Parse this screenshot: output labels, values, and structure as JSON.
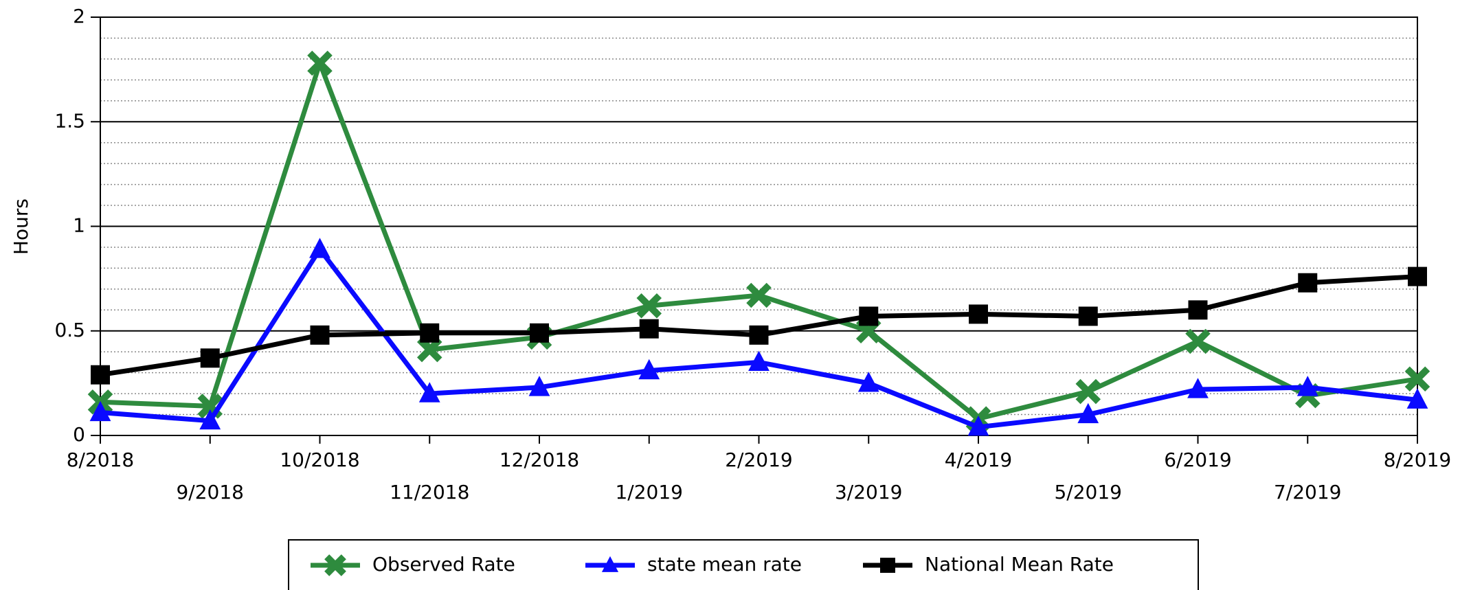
{
  "chart_data": {
    "type": "line",
    "y_label": "Hours",
    "categories": [
      "8/2018",
      "9/2018",
      "10/2018",
      "11/2018",
      "12/2018",
      "1/2019",
      "2/2019",
      "3/2019",
      "4/2019",
      "5/2019",
      "6/2019",
      "7/2019",
      "8/2019"
    ],
    "series": [
      {
        "name": "Observed Rate",
        "color": "#2e8b3e",
        "marker": "x",
        "values": [
          0.16,
          0.14,
          1.78,
          0.41,
          0.47,
          0.62,
          0.67,
          0.5,
          0.08,
          0.21,
          0.45,
          0.19,
          0.27
        ]
      },
      {
        "name": "state mean rate",
        "color": "#0a0aff",
        "marker": "triangle",
        "values": [
          0.11,
          0.07,
          0.89,
          0.2,
          0.23,
          0.31,
          0.35,
          0.25,
          0.04,
          0.1,
          0.22,
          0.23,
          0.17
        ]
      },
      {
        "name": "National Mean Rate",
        "color": "#000000",
        "marker": "square",
        "values": [
          0.29,
          0.37,
          0.48,
          0.49,
          0.49,
          0.51,
          0.48,
          0.57,
          0.58,
          0.57,
          0.6,
          0.73,
          0.76
        ]
      }
    ],
    "ylim": [
      0,
      2
    ],
    "yticks": [
      0,
      0.5,
      1,
      1.5,
      2
    ],
    "minor_gridlines": [
      0.1,
      0.2,
      0.3,
      0.4,
      0.6,
      0.7,
      0.8,
      0.9,
      1.1,
      1.2,
      1.3,
      1.4,
      1.6,
      1.7,
      1.8,
      1.9
    ],
    "grid": true,
    "legend": "bottom"
  }
}
